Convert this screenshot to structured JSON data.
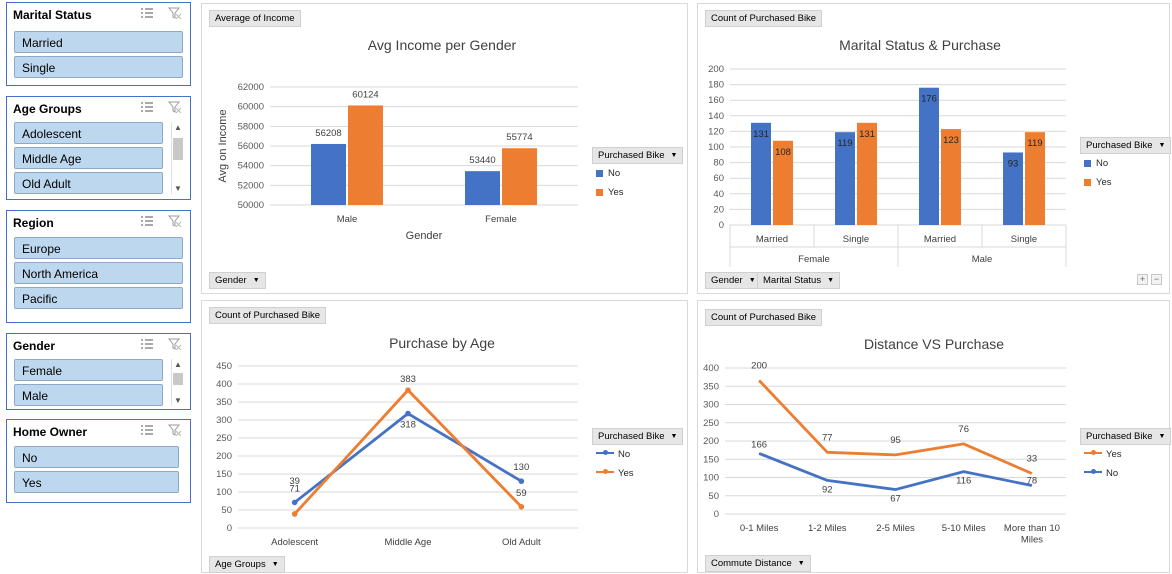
{
  "slicers": [
    {
      "title": "Marital Status",
      "items": [
        "Married",
        "Single"
      ],
      "scroll": false
    },
    {
      "title": "Age Groups",
      "items": [
        "Adolescent",
        "Middle Age",
        "Old Adult"
      ],
      "scroll": true
    },
    {
      "title": "Region",
      "items": [
        "Europe",
        "North America",
        "Pacific"
      ],
      "scroll": false
    },
    {
      "title": "Gender",
      "items": [
        "Female",
        "Male"
      ],
      "scroll": true
    },
    {
      "title": "Home Owner",
      "items": [
        "No",
        "Yes"
      ],
      "scroll": false
    }
  ],
  "colors": {
    "no": "#4472c4",
    "yes": "#ed7d31"
  },
  "charts": {
    "income": {
      "value_button": "Average of Income",
      "axis_button": "Gender",
      "legend_button": "Purchased Bike",
      "legend": [
        "No",
        "Yes"
      ]
    },
    "marital": {
      "value_button": "Count of Purchased Bike",
      "axis_buttons": [
        "Gender",
        "Marital Status"
      ],
      "legend_button": "Purchased Bike",
      "legend": [
        "No",
        "Yes"
      ],
      "plus": "+",
      "minus": "−"
    },
    "age": {
      "value_button": "Count of Purchased Bike",
      "axis_button": "Age Groups",
      "legend_button": "Purchased Bike",
      "legend": [
        "No",
        "Yes"
      ]
    },
    "distance": {
      "value_button": "Count of Purchased Bike",
      "axis_button": "Commute Distance",
      "legend_button": "Purchased Bike",
      "legend": [
        "Yes",
        "No"
      ]
    }
  },
  "chart_data": [
    {
      "type": "bar",
      "title": "Avg Income per Gender",
      "xlabel": "Gender",
      "ylabel": "Avg on Income",
      "categories": [
        "Male",
        "Female"
      ],
      "series": [
        {
          "name": "No",
          "values": [
            56208,
            53440
          ]
        },
        {
          "name": "Yes",
          "values": [
            60124,
            55774
          ]
        }
      ],
      "ylim": [
        50000,
        62000
      ],
      "yticks": [
        50000,
        52000,
        54000,
        56000,
        58000,
        60000,
        62000
      ],
      "grid": true,
      "legend_position": "right"
    },
    {
      "type": "bar",
      "title": "Marital Status & Purchase",
      "categories": [
        "Married",
        "Single",
        "Married",
        "Single"
      ],
      "groups": [
        {
          "label": "Female",
          "span": 2
        },
        {
          "label": "Male",
          "span": 2
        }
      ],
      "series": [
        {
          "name": "No",
          "values": [
            131,
            119,
            176,
            93
          ]
        },
        {
          "name": "Yes",
          "values": [
            108,
            131,
            123,
            119
          ]
        }
      ],
      "ylim": [
        0,
        200
      ],
      "yticks": [
        0,
        20,
        40,
        60,
        80,
        100,
        120,
        140,
        160,
        180,
        200
      ],
      "grid": true,
      "legend_position": "right"
    },
    {
      "type": "line",
      "title": "Purchase by Age",
      "categories": [
        "Adolescent",
        "Middle Age",
        "Old Adult"
      ],
      "series": [
        {
          "name": "No",
          "values": [
            71,
            318,
            130
          ]
        },
        {
          "name": "Yes",
          "values": [
            39,
            383,
            59
          ]
        }
      ],
      "ylim": [
        0,
        450
      ],
      "yticks": [
        0,
        50,
        100,
        150,
        200,
        250,
        300,
        350,
        400,
        450
      ],
      "grid": true,
      "legend_position": "right"
    },
    {
      "type": "line",
      "title": "Distance VS Purchase",
      "categories": [
        "0-1 Miles",
        "1-2 Miles",
        "2-5 Miles",
        "5-10 Miles",
        "More than 10 Miles"
      ],
      "series": [
        {
          "name": "Yes",
          "values": [
            200,
            77,
            95,
            76,
            33
          ]
        },
        {
          "name": "No",
          "values": [
            166,
            92,
            67,
            116,
            78
          ]
        }
      ],
      "ylim": [
        0,
        400
      ],
      "yticks": [
        0,
        50,
        100,
        150,
        200,
        250,
        300,
        350,
        400
      ],
      "grid": true,
      "legend_position": "right"
    }
  ]
}
